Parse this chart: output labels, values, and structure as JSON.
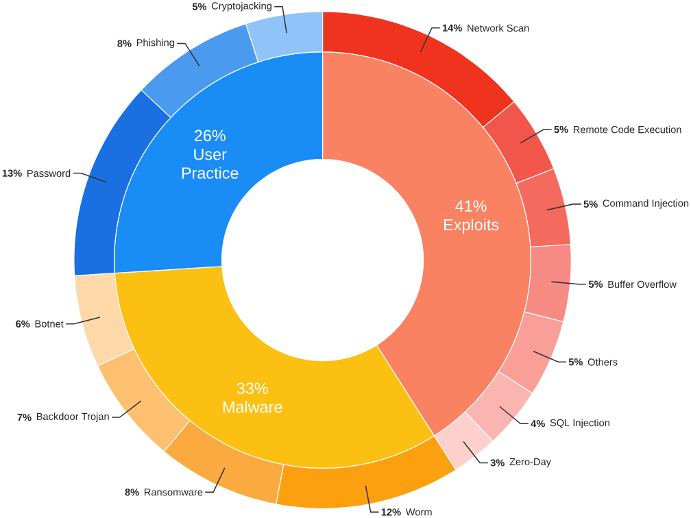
{
  "chart_data": [
    {
      "type": "donut",
      "categories": [
        "Exploits",
        "Malware",
        "User Practice"
      ],
      "values": [
        41,
        33,
        26
      ],
      "value_labels": [
        "41%",
        "33%",
        "26%"
      ],
      "colors": [
        "#f98262",
        "#fcc012",
        "#1a8cf5"
      ]
    },
    {
      "type": "donut",
      "categories": [
        "Network Scan",
        "Remote Code Execution",
        "Command Injection",
        "Buffer Overflow",
        "Others",
        "SQL Injection",
        "Zero-Day",
        "Worm",
        "Ransomware",
        "Backdoor Trojan",
        "Botnet",
        "Password",
        "Phishing",
        "Cryptojacking"
      ],
      "values": [
        14,
        5,
        5,
        5,
        5,
        4,
        3,
        12,
        8,
        7,
        6,
        13,
        8,
        5
      ],
      "value_labels": [
        "14%",
        "5%",
        "5%",
        "5%",
        "5%",
        "4%",
        "3%",
        "12%",
        "8%",
        "7%",
        "6%",
        "13%",
        "8%",
        "5%"
      ],
      "colors": [
        "#f0331e",
        "#f2564a",
        "#f46a5e",
        "#f88a84",
        "#fa9e98",
        "#fbb5b0",
        "#fdd0cc",
        "#fca010",
        "#fbaa40",
        "#fcc070",
        "#fdd8a8",
        "#1a70e0",
        "#4a9af0",
        "#90c4f8"
      ]
    }
  ]
}
